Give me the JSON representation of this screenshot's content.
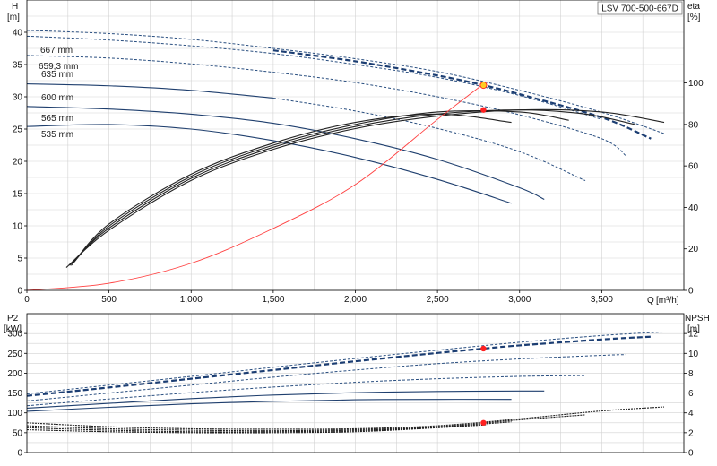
{
  "model_label": "LSV 700-500-667D",
  "colors": {
    "grid": "#d2d2d2",
    "axis": "#000000",
    "solid_curve": "#1f3f6e",
    "dashed_curve": "#2a4f80",
    "selected_curve": "#1b3d72",
    "efficiency": "#222222",
    "system": "#ff4040",
    "op_point_fill": "#ffcc22",
    "marker": "#ff2020"
  },
  "chart_data": [
    {
      "type": "line",
      "panel": "top",
      "y_title": "H",
      "y_unit": "[m]",
      "y2_title": "eta",
      "y2_unit": "[%]",
      "x_title": "Q",
      "x_unit": "[m³/h]",
      "xlim": [
        0,
        4000
      ],
      "ylim": [
        0,
        45
      ],
      "y2lim": [
        0,
        140
      ],
      "x_ticks": [
        0,
        500,
        1000,
        1500,
        2000,
        2500,
        3000,
        3500
      ],
      "x_tick_labels": [
        "0",
        "500",
        "1,000",
        "1,500",
        "2,000",
        "2,500",
        "3,000",
        "3,500"
      ],
      "y_ticks": [
        0,
        5,
        10,
        15,
        20,
        25,
        30,
        35,
        40
      ],
      "y2_ticks": [
        0,
        20,
        40,
        60,
        80,
        100
      ],
      "grid": true,
      "head_curves": [
        {
          "name": "667 mm",
          "style": "dashed-thin",
          "x": [
            0,
            500,
            1000,
            1500,
            2000,
            2500,
            3000,
            3500,
            3880
          ],
          "y": [
            40.3,
            39.8,
            38.9,
            37.5,
            35.9,
            33.9,
            31.0,
            27.6,
            24.3
          ]
        },
        {
          "name": "659,3 mm",
          "style": "dashed-bold",
          "x": [
            1500,
            2000,
            2500,
            2780,
            3000,
            3500,
            3800
          ],
          "y": [
            37.2,
            35.5,
            33.3,
            31.8,
            30.4,
            26.8,
            23.5
          ]
        },
        {
          "name": "",
          "style": "dashed-thin",
          "x": [
            0,
            500,
            1000,
            1500,
            2000,
            2500,
            3000,
            3500
          ],
          "y": [
            39.4,
            38.8,
            37.9,
            36.7,
            35.0,
            33.0,
            30.2,
            26.5
          ]
        },
        {
          "name": "635 mm",
          "style": "dashed-thin",
          "x": [
            0,
            500,
            1000,
            1500,
            2000,
            2500,
            3000,
            3500,
            3650
          ],
          "y": [
            36.4,
            36.0,
            35.1,
            33.8,
            32.2,
            30.0,
            27.2,
            23.5,
            20.8
          ]
        },
        {
          "name": "600 mm",
          "style": "mixed",
          "solid_until": 1500,
          "x": [
            0,
            500,
            1000,
            1500,
            2000,
            2500,
            3000,
            3400
          ],
          "y": [
            32.0,
            31.7,
            31.0,
            29.8,
            27.8,
            25.1,
            21.5,
            17.0
          ]
        },
        {
          "name": "565 mm",
          "style": "solid",
          "x": [
            0,
            500,
            1000,
            1500,
            2000,
            2500,
            3000,
            3150
          ],
          "y": [
            28.5,
            28.1,
            27.3,
            25.9,
            23.5,
            20.3,
            15.9,
            14.1
          ]
        },
        {
          "name": "535 mm",
          "style": "solid",
          "x": [
            0,
            500,
            1000,
            1500,
            2000,
            2500,
            2950
          ],
          "y": [
            25.4,
            25.7,
            25.0,
            23.2,
            20.6,
            17.2,
            13.5
          ]
        }
      ],
      "efficiency_curves": [
        {
          "x": [
            240,
            500,
            1000,
            1500,
            2000,
            2500,
            3000,
            3500,
            3880
          ],
          "y": [
            11,
            29,
            53,
            68,
            78,
            84,
            87,
            86,
            81
          ]
        },
        {
          "x": [
            260,
            500,
            1000,
            1500,
            2000,
            2500,
            3000,
            3400,
            3700
          ],
          "y": [
            12,
            30,
            54,
            69,
            79,
            85,
            87,
            85,
            80
          ]
        },
        {
          "x": [
            270,
            500,
            1000,
            1500,
            2000,
            2500,
            3000,
            3300
          ],
          "y": [
            12,
            31,
            55,
            70,
            80,
            86,
            86,
            82
          ]
        },
        {
          "x": [
            280,
            500,
            1000,
            1500,
            2000,
            2500,
            2950
          ],
          "y": [
            13,
            32,
            56,
            71,
            81,
            85,
            81
          ]
        }
      ],
      "system_curve": {
        "x": [
          0,
          500,
          1000,
          1500,
          2000,
          2500,
          2780
        ],
        "y": [
          0,
          1.1,
          4.2,
          9.6,
          16.4,
          26.5,
          32.0
        ]
      },
      "operating_point": {
        "x": 2780,
        "y": 31.8
      },
      "efficiency_point": {
        "x": 2780,
        "y": 87
      }
    },
    {
      "type": "line",
      "panel": "bottom",
      "y_title": "P2",
      "y_unit": "[kW]",
      "y2_title": "NPSH",
      "y2_unit": "[m]",
      "xlim": [
        0,
        4000
      ],
      "ylim": [
        0,
        350
      ],
      "y2lim": [
        0,
        14
      ],
      "y_ticks": [
        0,
        50,
        100,
        150,
        200,
        250,
        300
      ],
      "y2_ticks": [
        0,
        2,
        4,
        6,
        8,
        10,
        12
      ],
      "grid": true,
      "power_curves": [
        {
          "style": "dashed-thin",
          "x": [
            0,
            500,
            1000,
            1500,
            2000,
            2500,
            3000,
            3500,
            3880
          ],
          "y": [
            148,
            170,
            192,
            215,
            237,
            258,
            278,
            295,
            304
          ]
        },
        {
          "style": "dashed-bold",
          "x": [
            0,
            500,
            1000,
            1500,
            2000,
            2500,
            2780,
            3000,
            3500,
            3800
          ],
          "y": [
            143,
            164,
            186,
            208,
            230,
            251,
            262,
            270,
            285,
            292
          ]
        },
        {
          "style": "dashed-thin",
          "x": [
            0,
            500,
            1000,
            1500,
            2000,
            2500,
            3000,
            3500,
            3650
          ],
          "y": [
            130,
            150,
            170,
            190,
            208,
            224,
            236,
            245,
            247
          ]
        },
        {
          "style": "dashed-thin",
          "x": [
            0,
            500,
            1000,
            1500,
            2000,
            2500,
            3000,
            3400
          ],
          "y": [
            118,
            135,
            151,
            165,
            177,
            186,
            192,
            194
          ]
        },
        {
          "style": "solid",
          "x": [
            0,
            500,
            1000,
            1500,
            2000,
            2500,
            3000,
            3150
          ],
          "y": [
            112,
            124,
            136,
            145,
            151,
            154,
            155,
            155
          ]
        },
        {
          "style": "solid",
          "x": [
            0,
            500,
            1000,
            1500,
            2000,
            2500,
            2950
          ],
          "y": [
            104,
            114,
            123,
            129,
            133,
            134,
            134
          ]
        }
      ],
      "npsh_curves": [
        {
          "x": [
            0,
            500,
            1000,
            1500,
            2000,
            2500,
            3000,
            3500,
            3880
          ],
          "y": [
            3.0,
            2.6,
            2.4,
            2.35,
            2.4,
            2.7,
            3.4,
            4.2,
            4.6
          ]
        },
        {
          "x": [
            0,
            500,
            1000,
            1500,
            2000,
            2500,
            3000,
            3400
          ],
          "y": [
            2.7,
            2.4,
            2.25,
            2.2,
            2.3,
            2.6,
            3.3,
            3.8
          ]
        },
        {
          "x": [
            0,
            500,
            1000,
            1500,
            2000,
            2500,
            2950
          ],
          "y": [
            2.5,
            2.25,
            2.1,
            2.1,
            2.2,
            2.55,
            3.1
          ]
        },
        {
          "x": [
            0,
            500,
            1000,
            1500,
            2000,
            2500,
            2800
          ],
          "y": [
            2.3,
            2.1,
            2.0,
            2.0,
            2.1,
            2.5,
            2.8
          ]
        }
      ],
      "power_point": {
        "x": 2780,
        "y": 262
      },
      "npsh_point": {
        "x": 2780,
        "y": 3.0
      }
    }
  ]
}
